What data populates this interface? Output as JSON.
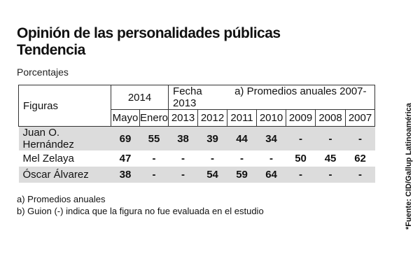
{
  "chart_data": {
    "type": "table",
    "title": "Opinión de las personalidades públicas",
    "subtitle": "Tendencia",
    "units": "Porcentajes",
    "header": {
      "figures_label": "Figuras",
      "year_2014": "2014",
      "fecha_label": "Fecha",
      "promedios_label": "a) Promedios anuales 2007-2013",
      "columns": [
        "Mayo",
        "Enero",
        "2013",
        "2012",
        "2011",
        "2010",
        "2009",
        "2008",
        "2007"
      ]
    },
    "rows": [
      {
        "name": "Juan O. Hernández",
        "values": [
          "69",
          "55",
          "38",
          "39",
          "44",
          "34",
          "-",
          "-",
          "-"
        ]
      },
      {
        "name": "Mel Zelaya",
        "values": [
          "47",
          "-",
          "-",
          "-",
          "-",
          "-",
          "50",
          "45",
          "62"
        ]
      },
      {
        "name": "Óscar Álvarez",
        "values": [
          "38",
          "-",
          "-",
          "54",
          "59",
          "64",
          "-",
          "-",
          "-"
        ]
      }
    ]
  },
  "notes": {
    "a": "a) Promedios anuales",
    "b": "b) Guion (-) indica que la figura no fue evaluada en el estudio"
  },
  "source": "*Fuente: CID/Gallup Latinoamérica"
}
